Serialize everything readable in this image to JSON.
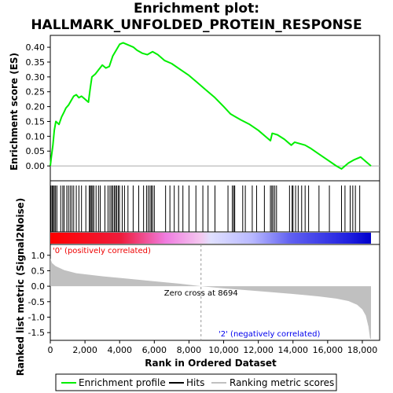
{
  "title_line1": "Enrichment plot:",
  "title_line2": "HALLMARK_UNFOLDED_PROTEIN_RESPONSE",
  "colors": {
    "profile": "#00ee00",
    "hits": "#000000",
    "metric_fill": "#c0c0c0",
    "pos_label": "#ee0000",
    "neg_label": "#0000ee"
  },
  "chart_data": {
    "type": "line",
    "x_max": 18500,
    "ylabel_top": "Enrichment score (ES)",
    "ylabel_bottom": "Ranked list metric (Signal2Noise)",
    "xlabel": "Rank in Ordered Dataset",
    "es_ylim": [
      -0.05,
      0.44
    ],
    "es_yticks": [
      "0.00",
      "0.05",
      "0.10",
      "0.15",
      "0.20",
      "0.25",
      "0.30",
      "0.35",
      "0.40"
    ],
    "metric_ylim": [
      -1.75,
      1.35
    ],
    "metric_yticks": [
      "1.0",
      "0.5",
      "0.0",
      "-0.5",
      "-1.0",
      "-1.5"
    ],
    "xticks": [
      "0",
      "2,000",
      "4,000",
      "6,000",
      "8,000",
      "10,000",
      "12,000",
      "14,000",
      "16,000",
      "18,000"
    ],
    "es_profile": [
      [
        0,
        0.0
      ],
      [
        60,
        0.03
      ],
      [
        150,
        0.07
      ],
      [
        230,
        0.12
      ],
      [
        320,
        0.15
      ],
      [
        500,
        0.14
      ],
      [
        650,
        0.165
      ],
      [
        780,
        0.18
      ],
      [
        900,
        0.195
      ],
      [
        1050,
        0.205
      ],
      [
        1200,
        0.22
      ],
      [
        1350,
        0.235
      ],
      [
        1500,
        0.24
      ],
      [
        1650,
        0.23
      ],
      [
        1800,
        0.235
      ],
      [
        2000,
        0.225
      ],
      [
        2200,
        0.215
      ],
      [
        2300,
        0.26
      ],
      [
        2400,
        0.3
      ],
      [
        2600,
        0.31
      ],
      [
        2800,
        0.325
      ],
      [
        3000,
        0.34
      ],
      [
        3200,
        0.33
      ],
      [
        3400,
        0.335
      ],
      [
        3600,
        0.37
      ],
      [
        3800,
        0.39
      ],
      [
        4000,
        0.41
      ],
      [
        4200,
        0.415
      ],
      [
        4400,
        0.41
      ],
      [
        4600,
        0.405
      ],
      [
        4800,
        0.4
      ],
      [
        5000,
        0.39
      ],
      [
        5300,
        0.38
      ],
      [
        5600,
        0.375
      ],
      [
        5900,
        0.385
      ],
      [
        6200,
        0.375
      ],
      [
        6600,
        0.355
      ],
      [
        7000,
        0.345
      ],
      [
        7500,
        0.325
      ],
      [
        8000,
        0.305
      ],
      [
        8500,
        0.28
      ],
      [
        9000,
        0.255
      ],
      [
        9500,
        0.23
      ],
      [
        10000,
        0.2
      ],
      [
        10400,
        0.175
      ],
      [
        10700,
        0.165
      ],
      [
        11000,
        0.155
      ],
      [
        11500,
        0.14
      ],
      [
        12000,
        0.12
      ],
      [
        12400,
        0.1
      ],
      [
        12700,
        0.085
      ],
      [
        12800,
        0.11
      ],
      [
        13100,
        0.105
      ],
      [
        13500,
        0.09
      ],
      [
        13900,
        0.07
      ],
      [
        14100,
        0.08
      ],
      [
        14400,
        0.075
      ],
      [
        14700,
        0.07
      ],
      [
        15000,
        0.06
      ],
      [
        15500,
        0.04
      ],
      [
        16000,
        0.02
      ],
      [
        16500,
        0.0
      ],
      [
        16800,
        -0.01
      ],
      [
        17200,
        0.01
      ],
      [
        17500,
        0.02
      ],
      [
        17900,
        0.03
      ],
      [
        18200,
        0.015
      ],
      [
        18500,
        0.0
      ]
    ],
    "hit_ranks": [
      40,
      110,
      170,
      230,
      300,
      380,
      600,
      720,
      800,
      950,
      1050,
      1150,
      1250,
      1350,
      1500,
      1650,
      1800,
      2050,
      2250,
      2310,
      2370,
      2440,
      2510,
      2640,
      2780,
      2880,
      3150,
      3330,
      3440,
      3530,
      3600,
      3690,
      3760,
      3830,
      3920,
      3990,
      4150,
      4280,
      4480,
      4780,
      5100,
      5380,
      5550,
      5650,
      5750,
      5830,
      5900,
      6000,
      6650,
      6900,
      7150,
      7400,
      7650,
      8000,
      8400,
      8800,
      9100,
      9500,
      10250,
      10500,
      10580,
      10640,
      11100,
      11250,
      11650,
      11900,
      12350,
      12700,
      12780,
      12850,
      12950,
      13050,
      13800,
      13950,
      14000,
      14150,
      14300,
      14500,
      14700,
      14900,
      15500,
      16100,
      16800,
      17000,
      17300,
      17450,
      17600,
      17850
    ],
    "zero_cross_rank": 8694,
    "zero_cross_label": "Zero cross at 8694",
    "metric_profile": [
      [
        0,
        0.9
      ],
      [
        100,
        0.75
      ],
      [
        300,
        0.65
      ],
      [
        800,
        0.52
      ],
      [
        1500,
        0.42
      ],
      [
        3000,
        0.32
      ],
      [
        4500,
        0.24
      ],
      [
        6000,
        0.16
      ],
      [
        7500,
        0.08
      ],
      [
        8694,
        0.0
      ],
      [
        10000,
        -0.07
      ],
      [
        12000,
        -0.16
      ],
      [
        14000,
        -0.25
      ],
      [
        15500,
        -0.33
      ],
      [
        16500,
        -0.4
      ],
      [
        17200,
        -0.48
      ],
      [
        17700,
        -0.6
      ],
      [
        18000,
        -0.75
      ],
      [
        18200,
        -0.95
      ],
      [
        18350,
        -1.3
      ],
      [
        18450,
        -1.7
      ],
      [
        18500,
        -1.7
      ]
    ],
    "pos_label": "'0' (positively correlated)",
    "neg_label": "'2' (negatively correlated)",
    "legend": [
      "Enrichment profile",
      "Hits",
      "Ranking metric scores"
    ]
  }
}
